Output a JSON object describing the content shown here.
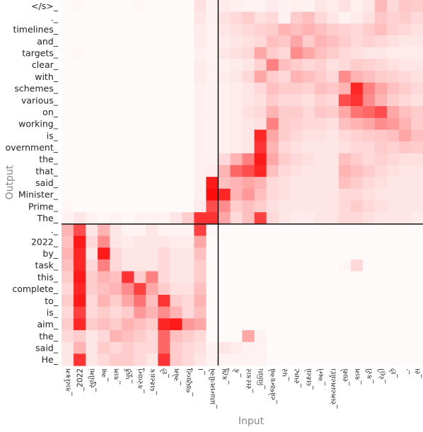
{
  "chart_data": {
    "type": "heatmap",
    "title": "",
    "xlabel": "Input",
    "ylabel": "Output",
    "x_labels": [
      "કાર્યક્રમ",
      "2022",
      "સુધીમાં",
      "આ",
      "કામ",
      "પૂર્ણ",
      "કરવાનું",
      "લક્ષ્યાંક",
      "છે",
      "એમ",
      "જણાવ્યું",
      "।",
      "પ્રધાનમંત્રીએ",
      "કહ્યું",
      "કે",
      "સરકાર",
      "વિવિધ",
      "યોજનાઓ",
      "પર",
      "સ્પષ્ટ",
      "લક્ષ્યો",
      "અને",
      "સમયમર્યાદા",
      "સાથે",
      "કામ",
      "કરી",
      "રહી",
      "છે",
      ".",
      "સ"
    ],
    "y_labels": [
      "</s>",
      ".",
      "timelines",
      "and",
      "targets",
      "clear",
      "with",
      "schemes",
      "various",
      "on",
      "working",
      "is",
      "overnment",
      "the",
      "that",
      "said",
      "Minister",
      "Prime",
      "The",
      ".",
      "2022",
      "by",
      "task",
      "this",
      "complete",
      "to",
      "is",
      "aim",
      "the",
      "said",
      "He"
    ],
    "tick_suffix": "_",
    "value_range": [
      0,
      1
    ],
    "colormap": "white-to-red",
    "separator": {
      "after_column": 12,
      "after_row": 18
    },
    "values": [
      [
        0.02,
        0.03,
        0.02,
        0.02,
        0.02,
        0.02,
        0.03,
        0.02,
        0.02,
        0.02,
        0.02,
        0.12,
        0.05,
        0.08,
        0.06,
        0.05,
        0.05,
        0.08,
        0.05,
        0.06,
        0.05,
        0.1,
        0.08,
        0.12,
        0.06,
        0.1,
        0.28,
        0.15,
        0.22,
        0.2
      ],
      [
        0.02,
        0.02,
        0.02,
        0.02,
        0.02,
        0.02,
        0.02,
        0.02,
        0.02,
        0.02,
        0.02,
        0.1,
        0.05,
        0.12,
        0.15,
        0.2,
        0.12,
        0.15,
        0.05,
        0.2,
        0.25,
        0.15,
        0.1,
        0.05,
        0.08,
        0.12,
        0.22,
        0.18,
        0.2,
        0.15
      ],
      [
        0.02,
        0.02,
        0.02,
        0.02,
        0.02,
        0.02,
        0.02,
        0.02,
        0.02,
        0.02,
        0.02,
        0.08,
        0.05,
        0.1,
        0.12,
        0.15,
        0.18,
        0.2,
        0.3,
        0.25,
        0.3,
        0.25,
        0.2,
        0.18,
        0.15,
        0.2,
        0.25,
        0.18,
        0.15,
        0.12
      ],
      [
        0.02,
        0.02,
        0.02,
        0.02,
        0.02,
        0.02,
        0.02,
        0.02,
        0.02,
        0.02,
        0.02,
        0.08,
        0.05,
        0.08,
        0.1,
        0.12,
        0.15,
        0.25,
        0.22,
        0.35,
        0.2,
        0.3,
        0.25,
        0.2,
        0.15,
        0.18,
        0.15,
        0.12,
        0.1,
        0.1
      ],
      [
        0.02,
        0.03,
        0.02,
        0.02,
        0.02,
        0.02,
        0.02,
        0.02,
        0.02,
        0.02,
        0.02,
        0.06,
        0.05,
        0.1,
        0.12,
        0.15,
        0.35,
        0.2,
        0.15,
        0.45,
        0.35,
        0.25,
        0.2,
        0.15,
        0.12,
        0.1,
        0.1,
        0.08,
        0.08,
        0.08
      ],
      [
        0.02,
        0.02,
        0.02,
        0.02,
        0.02,
        0.02,
        0.02,
        0.02,
        0.02,
        0.02,
        0.02,
        0.08,
        0.05,
        0.06,
        0.08,
        0.1,
        0.18,
        0.5,
        0.25,
        0.2,
        0.15,
        0.18,
        0.12,
        0.15,
        0.2,
        0.18,
        0.15,
        0.12,
        0.1,
        0.1
      ],
      [
        0.02,
        0.02,
        0.02,
        0.02,
        0.02,
        0.02,
        0.02,
        0.02,
        0.02,
        0.02,
        0.02,
        0.08,
        0.05,
        0.08,
        0.1,
        0.15,
        0.35,
        0.2,
        0.15,
        0.3,
        0.25,
        0.2,
        0.15,
        0.45,
        0.3,
        0.25,
        0.2,
        0.18,
        0.15,
        0.12
      ],
      [
        0.02,
        0.02,
        0.02,
        0.02,
        0.02,
        0.02,
        0.02,
        0.02,
        0.02,
        0.02,
        0.02,
        0.06,
        0.05,
        0.06,
        0.08,
        0.1,
        0.15,
        0.25,
        0.2,
        0.2,
        0.18,
        0.25,
        0.22,
        0.3,
        0.85,
        0.5,
        0.35,
        0.25,
        0.2,
        0.15
      ],
      [
        0.02,
        0.02,
        0.02,
        0.02,
        0.02,
        0.02,
        0.02,
        0.02,
        0.02,
        0.02,
        0.02,
        0.06,
        0.05,
        0.06,
        0.08,
        0.1,
        0.12,
        0.2,
        0.15,
        0.15,
        0.12,
        0.18,
        0.15,
        0.7,
        0.8,
        0.45,
        0.3,
        0.2,
        0.15,
        0.12
      ],
      [
        0.02,
        0.02,
        0.02,
        0.02,
        0.02,
        0.02,
        0.02,
        0.02,
        0.02,
        0.02,
        0.02,
        0.06,
        0.05,
        0.06,
        0.08,
        0.12,
        0.15,
        0.3,
        0.2,
        0.2,
        0.15,
        0.22,
        0.2,
        0.35,
        0.55,
        0.6,
        0.7,
        0.35,
        0.25,
        0.2
      ],
      [
        0.02,
        0.02,
        0.02,
        0.02,
        0.02,
        0.02,
        0.02,
        0.02,
        0.02,
        0.02,
        0.02,
        0.06,
        0.05,
        0.06,
        0.08,
        0.1,
        0.12,
        0.5,
        0.2,
        0.18,
        0.15,
        0.15,
        0.12,
        0.25,
        0.3,
        0.35,
        0.45,
        0.4,
        0.3,
        0.2
      ],
      [
        0.02,
        0.02,
        0.02,
        0.02,
        0.02,
        0.02,
        0.02,
        0.02,
        0.02,
        0.02,
        0.02,
        0.06,
        0.05,
        0.06,
        0.08,
        0.1,
        0.85,
        0.35,
        0.2,
        0.15,
        0.12,
        0.12,
        0.1,
        0.15,
        0.18,
        0.2,
        0.22,
        0.25,
        0.35,
        0.25
      ],
      [
        0.02,
        0.02,
        0.02,
        0.02,
        0.02,
        0.02,
        0.02,
        0.02,
        0.02,
        0.02,
        0.02,
        0.06,
        0.05,
        0.06,
        0.08,
        0.1,
        0.8,
        0.3,
        0.15,
        0.12,
        0.1,
        0.1,
        0.1,
        0.12,
        0.15,
        0.15,
        0.2,
        0.18,
        0.22,
        0.2
      ],
      [
        0.02,
        0.02,
        0.02,
        0.02,
        0.02,
        0.02,
        0.02,
        0.02,
        0.02,
        0.02,
        0.02,
        0.06,
        0.05,
        0.15,
        0.3,
        0.5,
        0.9,
        0.35,
        0.2,
        0.15,
        0.12,
        0.1,
        0.1,
        0.25,
        0.2,
        0.15,
        0.18,
        0.15,
        0.12,
        0.12
      ],
      [
        0.02,
        0.02,
        0.02,
        0.02,
        0.02,
        0.02,
        0.02,
        0.02,
        0.02,
        0.02,
        0.02,
        0.06,
        0.08,
        0.3,
        0.6,
        0.7,
        0.85,
        0.25,
        0.15,
        0.12,
        0.1,
        0.1,
        0.1,
        0.3,
        0.25,
        0.2,
        0.15,
        0.12,
        0.1,
        0.1
      ],
      [
        0.02,
        0.02,
        0.02,
        0.02,
        0.02,
        0.02,
        0.02,
        0.02,
        0.02,
        0.02,
        0.02,
        0.06,
        0.9,
        0.25,
        0.3,
        0.35,
        0.3,
        0.15,
        0.12,
        0.1,
        0.1,
        0.1,
        0.1,
        0.25,
        0.2,
        0.15,
        0.12,
        0.1,
        0.1,
        0.1
      ],
      [
        0.02,
        0.02,
        0.02,
        0.02,
        0.02,
        0.02,
        0.02,
        0.02,
        0.02,
        0.02,
        0.02,
        0.06,
        0.95,
        0.85,
        0.3,
        0.4,
        0.25,
        0.15,
        0.12,
        0.1,
        0.1,
        0.1,
        0.1,
        0.15,
        0.15,
        0.12,
        0.1,
        0.1,
        0.1,
        0.1
      ],
      [
        0.03,
        0.02,
        0.02,
        0.02,
        0.02,
        0.02,
        0.02,
        0.02,
        0.02,
        0.02,
        0.02,
        0.08,
        0.7,
        0.45,
        0.2,
        0.25,
        0.2,
        0.12,
        0.1,
        0.1,
        0.1,
        0.1,
        0.1,
        0.15,
        0.2,
        0.15,
        0.12,
        0.1,
        0.1,
        0.1
      ],
      [
        0.05,
        0.1,
        0.05,
        0.03,
        0.05,
        0.03,
        0.05,
        0.05,
        0.05,
        0.1,
        0.2,
        0.8,
        0.8,
        0.35,
        0.15,
        0.25,
        0.75,
        0.15,
        0.1,
        0.08,
        0.08,
        0.1,
        0.1,
        0.15,
        0.15,
        0.12,
        0.1,
        0.1,
        0.1,
        0.08
      ],
      [
        0.3,
        0.7,
        0.1,
        0.3,
        0.1,
        0.05,
        0.05,
        0.1,
        0.05,
        0.05,
        0.05,
        0.75,
        0.03,
        0.02,
        0.02,
        0.02,
        0.02,
        0.02,
        0.02,
        0.02,
        0.02,
        0.02,
        0.02,
        0.02,
        0.02,
        0.02,
        0.02,
        0.02,
        0.02,
        0.02
      ],
      [
        0.25,
        0.9,
        0.15,
        0.45,
        0.1,
        0.08,
        0.1,
        0.1,
        0.1,
        0.08,
        0.08,
        0.35,
        0.02,
        0.02,
        0.02,
        0.02,
        0.02,
        0.02,
        0.02,
        0.02,
        0.02,
        0.02,
        0.02,
        0.02,
        0.02,
        0.02,
        0.02,
        0.02,
        0.02,
        0.02
      ],
      [
        0.3,
        0.85,
        0.1,
        0.9,
        0.15,
        0.1,
        0.1,
        0.1,
        0.15,
        0.1,
        0.1,
        0.25,
        0.02,
        0.02,
        0.02,
        0.02,
        0.02,
        0.02,
        0.02,
        0.02,
        0.02,
        0.02,
        0.02,
        0.02,
        0.02,
        0.02,
        0.02,
        0.02,
        0.02,
        0.02
      ],
      [
        0.25,
        0.85,
        0.15,
        0.5,
        0.15,
        0.1,
        0.1,
        0.1,
        0.15,
        0.1,
        0.1,
        0.2,
        0.02,
        0.02,
        0.02,
        0.02,
        0.02,
        0.02,
        0.02,
        0.02,
        0.02,
        0.02,
        0.02,
        0.03,
        0.15,
        0.02,
        0.02,
        0.02,
        0.02,
        0.02
      ],
      [
        0.2,
        0.9,
        0.2,
        0.3,
        0.25,
        0.8,
        0.2,
        0.5,
        0.15,
        0.1,
        0.1,
        0.2,
        0.02,
        0.02,
        0.02,
        0.02,
        0.02,
        0.02,
        0.02,
        0.02,
        0.02,
        0.02,
        0.02,
        0.02,
        0.02,
        0.02,
        0.02,
        0.02,
        0.02,
        0.02
      ],
      [
        0.15,
        0.85,
        0.2,
        0.25,
        0.3,
        0.45,
        0.75,
        0.35,
        0.2,
        0.12,
        0.12,
        0.25,
        0.02,
        0.02,
        0.02,
        0.02,
        0.02,
        0.02,
        0.02,
        0.02,
        0.02,
        0.02,
        0.02,
        0.02,
        0.02,
        0.02,
        0.02,
        0.02,
        0.02,
        0.02
      ],
      [
        0.2,
        0.9,
        0.15,
        0.3,
        0.2,
        0.35,
        0.55,
        0.25,
        0.8,
        0.2,
        0.15,
        0.3,
        0.02,
        0.02,
        0.02,
        0.02,
        0.02,
        0.02,
        0.02,
        0.02,
        0.02,
        0.02,
        0.02,
        0.02,
        0.02,
        0.02,
        0.02,
        0.02,
        0.02,
        0.02
      ],
      [
        0.15,
        0.75,
        0.15,
        0.2,
        0.15,
        0.2,
        0.4,
        0.3,
        0.45,
        0.3,
        0.15,
        0.25,
        0.02,
        0.02,
        0.02,
        0.02,
        0.02,
        0.02,
        0.02,
        0.02,
        0.02,
        0.02,
        0.02,
        0.02,
        0.02,
        0.02,
        0.02,
        0.02,
        0.02,
        0.02
      ],
      [
        0.2,
        0.85,
        0.2,
        0.25,
        0.2,
        0.3,
        0.25,
        0.2,
        0.85,
        0.9,
        0.4,
        0.35,
        0.02,
        0.02,
        0.02,
        0.02,
        0.02,
        0.02,
        0.02,
        0.02,
        0.02,
        0.02,
        0.02,
        0.02,
        0.02,
        0.02,
        0.02,
        0.02,
        0.02,
        0.02
      ],
      [
        0.15,
        0.2,
        0.1,
        0.15,
        0.3,
        0.25,
        0.2,
        0.15,
        0.6,
        0.25,
        0.2,
        0.15,
        0.02,
        0.02,
        0.02,
        0.35,
        0.05,
        0.02,
        0.02,
        0.02,
        0.02,
        0.02,
        0.02,
        0.02,
        0.02,
        0.02,
        0.02,
        0.02,
        0.02,
        0.02
      ],
      [
        0.1,
        0.3,
        0.1,
        0.2,
        0.15,
        0.2,
        0.15,
        0.15,
        0.6,
        0.2,
        0.15,
        0.12,
        0.05,
        0.1,
        0.08,
        0.05,
        0.05,
        0.02,
        0.02,
        0.02,
        0.02,
        0.02,
        0.02,
        0.02,
        0.02,
        0.02,
        0.02,
        0.02,
        0.02,
        0.02
      ],
      [
        0.1,
        0.8,
        0.1,
        0.15,
        0.2,
        0.2,
        0.15,
        0.1,
        0.8,
        0.2,
        0.15,
        0.1,
        0.05,
        0.05,
        0.05,
        0.05,
        0.05,
        0.02,
        0.02,
        0.02,
        0.02,
        0.02,
        0.02,
        0.02,
        0.02,
        0.02,
        0.02,
        0.02,
        0.02,
        0.02
      ]
    ]
  }
}
